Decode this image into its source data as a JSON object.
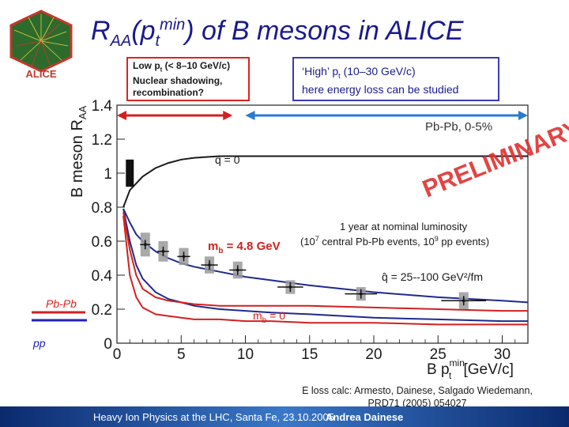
{
  "title": {
    "r": "R",
    "aa": "AA",
    "open": "(p",
    "t": "t",
    "min": "min",
    "rest": ") of B mesons in ALICE"
  },
  "logo": {
    "text": "ALICE",
    "color": "#c0392b"
  },
  "box_low": {
    "line1": "Low p",
    "line1_sub": "t",
    "line1_rest": " (< 8–10 GeV/c)",
    "line2": "Nuclear shadowing,",
    "line3": "recombination?"
  },
  "box_high": {
    "line1": "‘High’ p",
    "line1_sub": "t",
    "line1_rest": "  (10–30 GeV/c)",
    "line2": "here energy loss can be studied"
  },
  "chart_data": {
    "type": "line",
    "ylabel": "B meson R",
    "ylabel_sub": "AA",
    "xlabel": "B p",
    "xlabel_sup": "min",
    "xlabel_sub": "t",
    "xlabel_unit": " [GeV/c]",
    "xlim": [
      0,
      32
    ],
    "ylim": [
      0,
      1.4
    ],
    "xticks": [
      0,
      5,
      10,
      15,
      20,
      25,
      30
    ],
    "yticks": [
      0,
      0.2,
      0.4,
      0.6,
      0.8,
      1,
      1.2,
      1.4
    ],
    "grid": false,
    "system_label": "Pb-Pb,  0-5%",
    "watermark": "PRELIMINARY",
    "watermark_color": "#e03030",
    "annotation_lumi_1": "1 year at nominal luminosity",
    "annotation_lumi_2a": "(10",
    "annotation_lumi_2b": "7",
    "annotation_lumi_2c": " central Pb-Pb events, 10",
    "annotation_lumi_2d": "9",
    "annotation_lumi_2e": " pp events)",
    "label_qhat0": "q̂ = 0",
    "label_qhat": "q̂ = 25--100 GeV²/fm",
    "label_mb48": "m",
    "label_mb48_sub": "b",
    "label_mb48_rest": " = 4.8 GeV",
    "label_mb0": "m",
    "label_mb0_sub": "b",
    "label_mb0_rest": " = 0",
    "series": [
      {
        "role": "qhat0",
        "color": "#1a1a1a",
        "x": [
          0.5,
          1,
          2,
          3,
          4,
          5,
          6,
          8,
          10,
          12,
          15,
          20,
          25,
          30,
          32
        ],
        "y": [
          0.8,
          0.9,
          0.98,
          1.03,
          1.06,
          1.08,
          1.09,
          1.1,
          1.1,
          1.1,
          1.1,
          1.1,
          1.1,
          1.1,
          1.1
        ]
      },
      {
        "role": "mb48-upper",
        "color": "#1f2a8c",
        "x": [
          0.5,
          1,
          1.5,
          2,
          3,
          4,
          5,
          6,
          8,
          10,
          12,
          15,
          20,
          25,
          30,
          32
        ],
        "y": [
          0.79,
          0.71,
          0.64,
          0.6,
          0.54,
          0.5,
          0.47,
          0.45,
          0.42,
          0.39,
          0.37,
          0.34,
          0.3,
          0.27,
          0.25,
          0.24
        ]
      },
      {
        "role": "mb48-lower",
        "color": "#1f2a8c",
        "x": [
          0.5,
          1,
          1.5,
          2,
          3,
          4,
          5,
          6,
          8,
          10,
          12,
          15,
          20,
          25,
          30,
          32
        ],
        "y": [
          0.79,
          0.6,
          0.46,
          0.38,
          0.3,
          0.26,
          0.24,
          0.22,
          0.2,
          0.19,
          0.18,
          0.17,
          0.15,
          0.14,
          0.13,
          0.13
        ]
      },
      {
        "role": "mb0-upper",
        "color": "#d22020",
        "x": [
          0.5,
          1,
          1.5,
          2,
          3,
          4,
          5,
          6,
          8,
          10,
          12,
          15,
          20,
          25,
          30,
          32
        ],
        "y": [
          0.77,
          0.55,
          0.4,
          0.32,
          0.27,
          0.25,
          0.24,
          0.23,
          0.22,
          0.22,
          0.22,
          0.22,
          0.21,
          0.2,
          0.19,
          0.19
        ]
      },
      {
        "role": "mb0-lower",
        "color": "#d22020",
        "x": [
          0.5,
          1,
          1.5,
          2,
          3,
          4,
          5,
          6,
          8,
          10,
          12,
          15,
          20,
          25,
          30,
          32
        ],
        "y": [
          0.75,
          0.4,
          0.27,
          0.21,
          0.17,
          0.16,
          0.15,
          0.14,
          0.14,
          0.13,
          0.13,
          0.12,
          0.12,
          0.11,
          0.11,
          0.11
        ]
      }
    ],
    "points": [
      {
        "x": 2.2,
        "y": 0.58,
        "ex": 0.8,
        "sys": 0.07
      },
      {
        "x": 3.6,
        "y": 0.54,
        "ex": 0.9,
        "sys": 0.06
      },
      {
        "x": 5.2,
        "y": 0.51,
        "ex": 1.0,
        "sys": 0.05
      },
      {
        "x": 7.2,
        "y": 0.46,
        "ex": 1.3,
        "sys": 0.05
      },
      {
        "x": 9.4,
        "y": 0.43,
        "ex": 1.3,
        "sys": 0.05
      },
      {
        "x": 13.5,
        "y": 0.33,
        "ex": 2.0,
        "sys": 0.04
      },
      {
        "x": 19.0,
        "y": 0.29,
        "ex": 2.5,
        "sys": 0.04
      },
      {
        "x": 27.0,
        "y": 0.25,
        "ex": 3.5,
        "sys": 0.05
      }
    ],
    "norm_box": {
      "x": 1.0,
      "y": 1.0,
      "ey": 0.08
    },
    "range_low": [
      0,
      9
    ],
    "range_high": [
      10,
      32
    ]
  },
  "legend": {
    "pbpb": "Pb-Pb",
    "pp": "pp",
    "pbpb_color": "#d22020",
    "pp_color": "#2020c0"
  },
  "eloss": {
    "line1": "E loss calc: Armesto, Dainese, Salgado Wiedemann,",
    "line2": "PRD71 (2005) 054027"
  },
  "footer": {
    "left": "Heavy Ion Physics at the LHC, Santa Fe, 23.10.2005",
    "mid": "Andrea Dainese"
  }
}
